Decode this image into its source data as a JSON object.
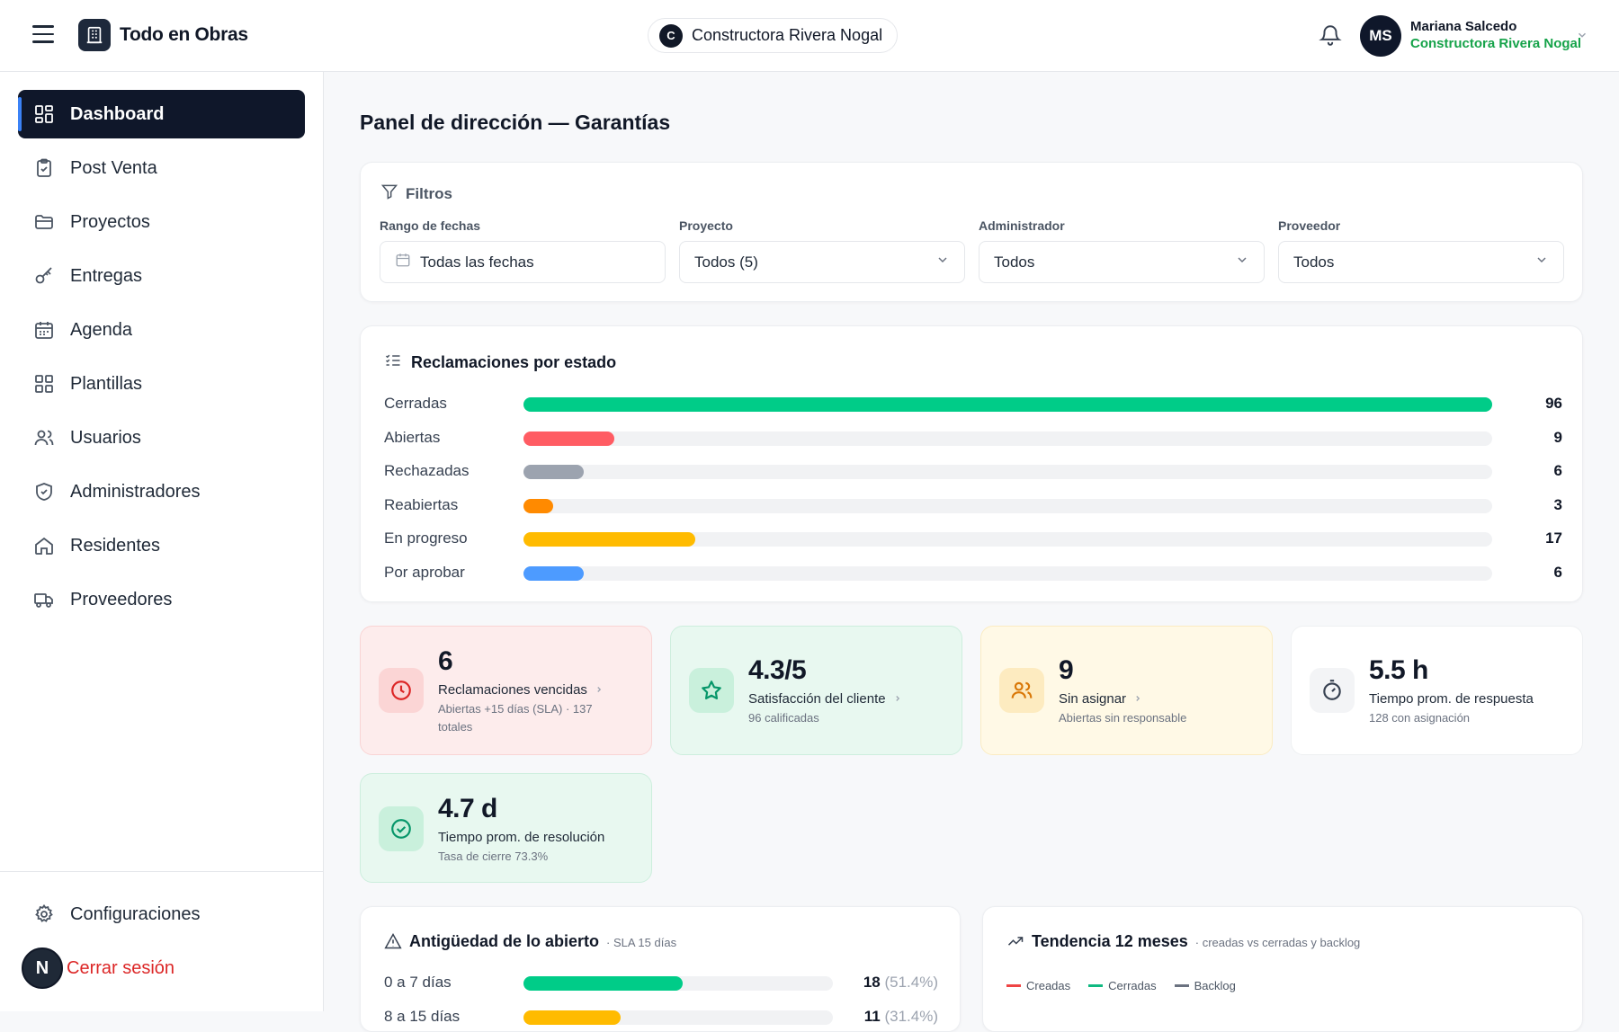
{
  "header": {
    "app_name": "Todo en Obras",
    "company_pill": {
      "initial": "C",
      "name": "Constructora Rivera Nogal"
    },
    "user": {
      "initials": "MS",
      "name": "Mariana Salcedo",
      "company": "Constructora Rivera Nogal"
    }
  },
  "sidebar": {
    "items": [
      {
        "label": "Dashboard",
        "icon": "dashboard-icon",
        "active": true
      },
      {
        "label": "Post Venta",
        "icon": "clipboard-icon"
      },
      {
        "label": "Proyectos",
        "icon": "folder-icon"
      },
      {
        "label": "Entregas",
        "icon": "key-icon"
      },
      {
        "label": "Agenda",
        "icon": "calendar-icon"
      },
      {
        "label": "Plantillas",
        "icon": "grid-icon"
      },
      {
        "label": "Usuarios",
        "icon": "users-icon"
      },
      {
        "label": "Administradores",
        "icon": "shield-icon"
      },
      {
        "label": "Residentes",
        "icon": "home-icon"
      },
      {
        "label": "Proveedores",
        "icon": "truck-icon"
      }
    ],
    "settings_label": "Configuraciones",
    "logout_label": "Cerrar sesión",
    "logout_badge": "N"
  },
  "main": {
    "title": "Panel de dirección — Garantías",
    "filters": {
      "title": "Filtros",
      "date_range": {
        "label": "Rango de fechas",
        "value": "Todas las fechas"
      },
      "project": {
        "label": "Proyecto",
        "value": "Todos (5)"
      },
      "admin": {
        "label": "Administrador",
        "value": "Todos"
      },
      "provider": {
        "label": "Proveedor",
        "value": "Todos"
      }
    },
    "status_card": {
      "title": "Reclamaciones por estado",
      "rows": [
        {
          "label": "Cerradas",
          "value": "96",
          "fraction": 1.0,
          "color": "#00cc88"
        },
        {
          "label": "Abiertas",
          "value": "9",
          "fraction": 0.094,
          "color": "#ff5c63"
        },
        {
          "label": "Rechazadas",
          "value": "6",
          "fraction": 0.0625,
          "color": "#9ca3af"
        },
        {
          "label": "Reabiertas",
          "value": "3",
          "fraction": 0.031,
          "color": "#ff8a00"
        },
        {
          "label": "En progreso",
          "value": "17",
          "fraction": 0.177,
          "color": "#ffbb00"
        },
        {
          "label": "Por aprobar",
          "value": "6",
          "fraction": 0.0625,
          "color": "#4d9bff"
        }
      ]
    },
    "kpis": {
      "overdue": {
        "value": "6",
        "label": "Reclamaciones vencidas",
        "sub": "Abiertas +15 días (SLA) · 137 totales"
      },
      "satisfaction": {
        "value": "4.3/5",
        "label": "Satisfacción del cliente",
        "sub": "96 calificadas"
      },
      "unassigned": {
        "value": "9",
        "label": "Sin asignar",
        "sub": "Abiertas sin responsable"
      },
      "response": {
        "value": "5.5 h",
        "label": "Tiempo prom. de respuesta",
        "sub": "128 con asignación"
      },
      "resolution": {
        "value": "4.7 d",
        "label": "Tiempo prom. de resolución",
        "sub": "Tasa de cierre 73.3%"
      }
    },
    "aging": {
      "title": "Antigüedad de lo abierto",
      "sub": "· SLA 15 días",
      "rows": [
        {
          "label": "0 a 7 días",
          "value": "18",
          "pct": "(51.4%)",
          "fraction": 0.514,
          "color": "#00cc88"
        },
        {
          "label": "8 a 15 días",
          "value": "11",
          "pct": "(31.4%)",
          "fraction": 0.314,
          "color": "#ffbb00"
        }
      ]
    },
    "trend": {
      "title": "Tendencia 12 meses",
      "sub": "· creadas vs cerradas y backlog",
      "legend": [
        {
          "label": "Creadas",
          "color": "#ef4444"
        },
        {
          "label": "Cerradas",
          "color": "#10b981"
        },
        {
          "label": "Backlog",
          "color": "#6b7280"
        }
      ]
    }
  }
}
